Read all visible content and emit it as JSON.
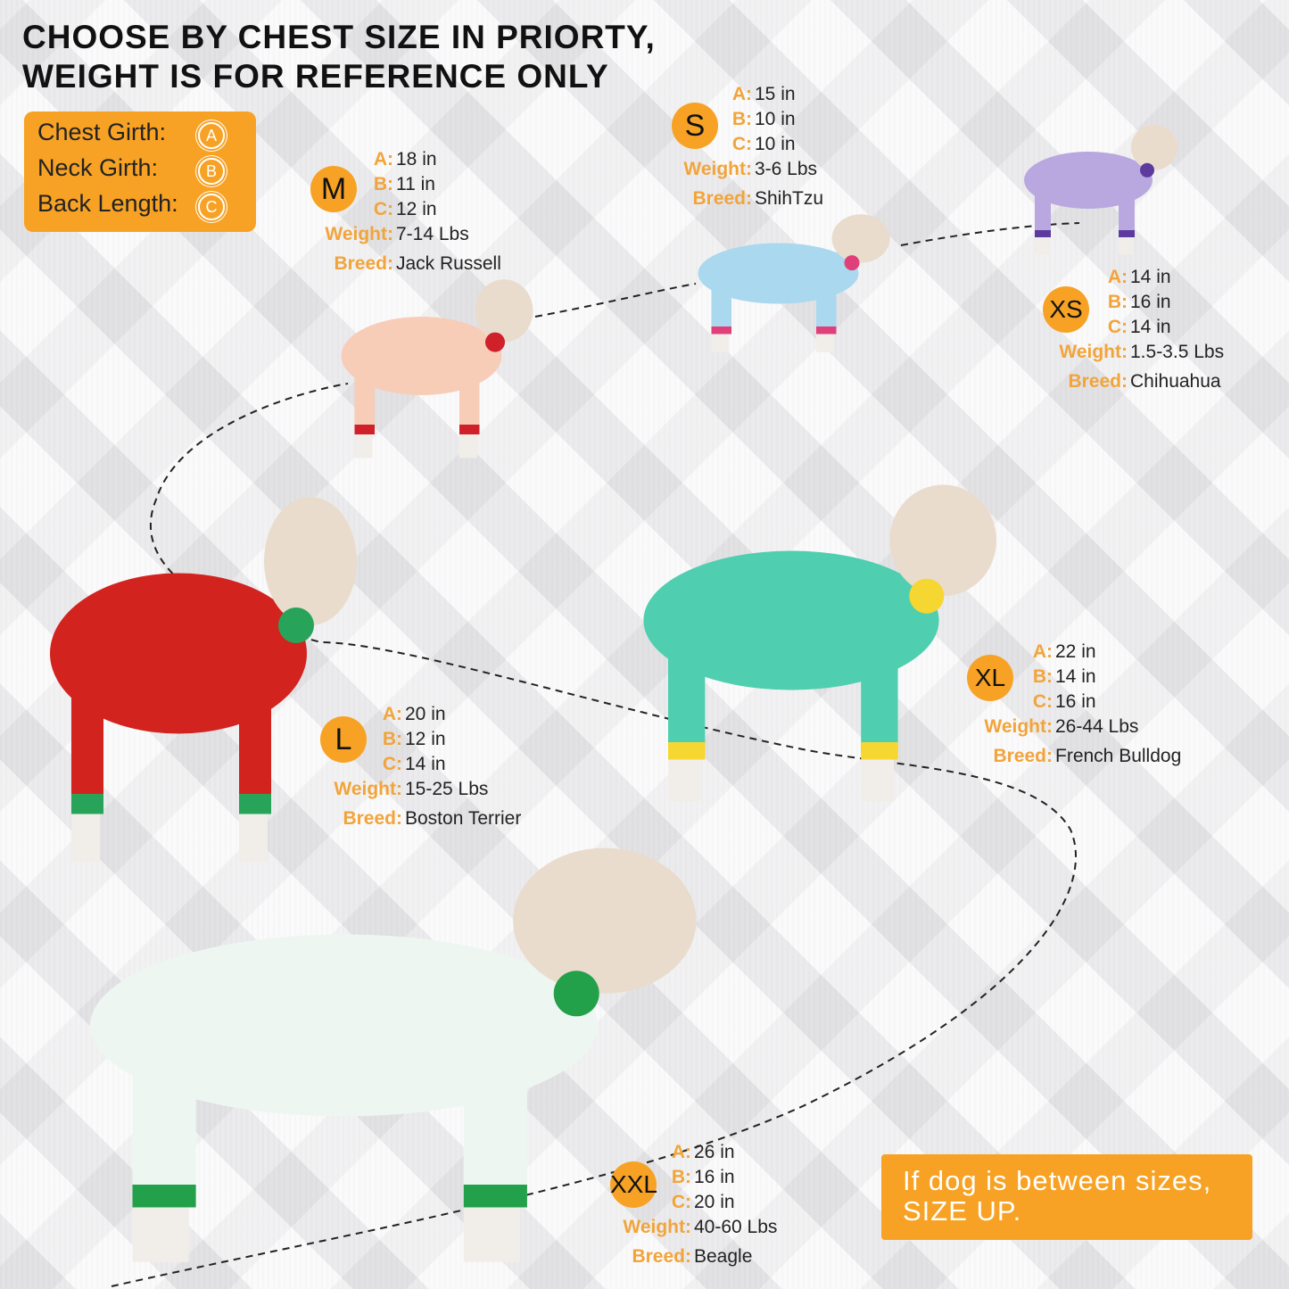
{
  "header": {
    "line1": "CHOOSE BY CHEST SIZE IN PRIORTY,",
    "line2": "WEIGHT IS FOR REFERENCE ONLY"
  },
  "legend": {
    "items": [
      {
        "label": "Chest Girth:",
        "key": "A"
      },
      {
        "label": "Neck Girth:",
        "key": "B"
      },
      {
        "label": "Back Length:",
        "key": "C"
      }
    ]
  },
  "labels": {
    "a": "A:",
    "b": "B:",
    "c": "C:",
    "weight": "Weight:",
    "breed": "Breed:"
  },
  "sizes": [
    {
      "size": "S",
      "a": "15 in",
      "b": "10 in",
      "c": "10 in",
      "weight": "3-6 Lbs",
      "breed": "ShihTzu",
      "dog_colors": [
        "#a9d8ef",
        "#e0407a"
      ]
    },
    {
      "size": "M",
      "a": "18 in",
      "b": "11 in",
      "c": "12 in",
      "weight": "7-14 Lbs",
      "breed": "Jack Russell",
      "dog_colors": [
        "#f7cdb8",
        "#d0202a"
      ]
    },
    {
      "size": "XS",
      "a": "14 in",
      "b": "16 in",
      "c": "14 in",
      "weight": "1.5-3.5 Lbs",
      "breed": "Chihuahua",
      "dog_colors": [
        "#b9a8e0",
        "#5c3a9e"
      ]
    },
    {
      "size": "XL",
      "a": "22 in",
      "b": "14 in",
      "c": "16 in",
      "weight": "26-44 Lbs",
      "breed": "French Bulldog",
      "dog_colors": [
        "#4fcfb0",
        "#f6d630"
      ]
    },
    {
      "size": "L",
      "a": "20 in",
      "b": "12 in",
      "c": "14 in",
      "weight": "15-25 Lbs",
      "breed": "Boston Terrier",
      "dog_colors": [
        "#d3231e",
        "#27a45a"
      ]
    },
    {
      "size": "XXL",
      "a": "26 in",
      "b": "16 in",
      "c": "20 in",
      "weight": "40-60 Lbs",
      "breed": "Beagle",
      "dog_colors": [
        "#eef6f2",
        "#22a04a"
      ]
    }
  ],
  "note": {
    "line1": "If dog is between sizes,",
    "line2": "SIZE UP."
  },
  "colors": {
    "accent": "#f7a224",
    "label": "#f2a43a"
  }
}
